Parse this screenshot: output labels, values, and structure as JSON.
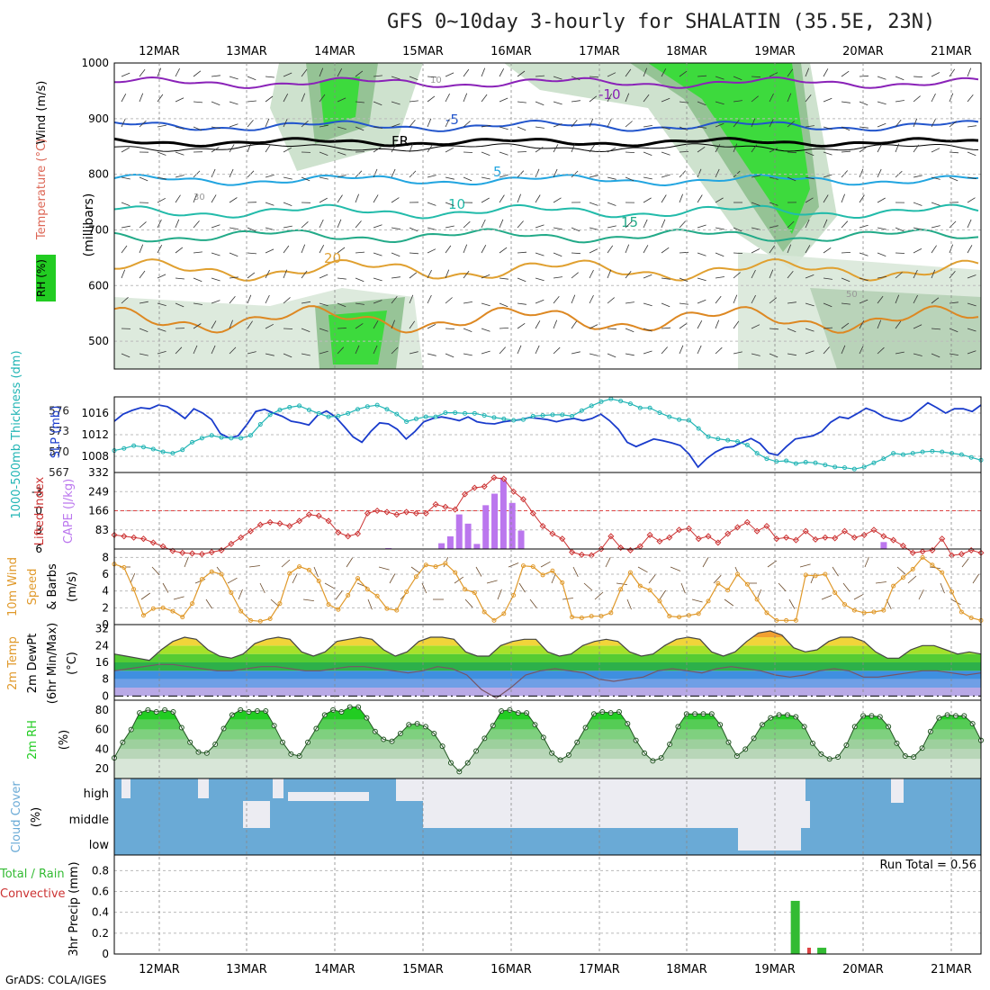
{
  "title": "GFS 0~10day 3-hourly for SHALATIN (35.5E, 23N)",
  "credit": "GrADS: COLA/IGES",
  "dates": [
    "12MAR",
    "13MAR",
    "14MAR",
    "15MAR",
    "16MAR",
    "17MAR",
    "18MAR",
    "19MAR",
    "20MAR",
    "21MAR"
  ],
  "colors": {
    "rh_green": "#22cc22",
    "temp_purple": "#8a22b8",
    "temp_blue": "#2255cc",
    "slp_blue": "#1a3ccc",
    "thickness_cyan": "#22b5b5",
    "lifted_red": "#cc3333",
    "cape_purple": "#bb77ee",
    "wind_orange": "#e0992a",
    "cloud_blue": "#6aaad6",
    "precip_green": "#33bb33"
  },
  "chart_data": [
    {
      "panel": "upper-air",
      "type": "heatmap",
      "ylabel": "(millibars)",
      "y_ticks": [
        500,
        600,
        700,
        800,
        900,
        1000
      ],
      "legend": [
        "RH (%)",
        "Temperature (°C)",
        "Wind (m/s)"
      ],
      "isotherm_labels": [
        "-10",
        "-5",
        "FR",
        "5",
        "10",
        "15",
        "20"
      ],
      "rh_contour_labels": [
        "10",
        "30",
        "50"
      ]
    },
    {
      "panel": "slp-thickness",
      "type": "line",
      "ylabel_left": "1000-500mb Thickness (dm)",
      "ylabel_right": "SLP (mb)",
      "thickness_ticks": [
        "576",
        "573",
        "570",
        "567"
      ],
      "slp_ticks": [
        "1016",
        "1012",
        "1008"
      ],
      "series": [
        {
          "name": "SLP (mb)",
          "values": [
            1014.5,
            1015.8,
            1016.5,
            1017.0,
            1016.8,
            1017.5,
            1017.2,
            1016.2,
            1015.0,
            1016.8,
            1016.0,
            1014.8,
            1012.2,
            1011.4,
            1011.8,
            1013.9,
            1016.3,
            1016.7,
            1016.0,
            1015.4,
            1014.5,
            1014.2,
            1013.8,
            1015.6,
            1016.4,
            1015.3,
            1013.5,
            1011.6,
            1010.6,
            1012.6,
            1014.2,
            1014.0,
            1013.0,
            1011.2,
            1012.6,
            1014.4,
            1015.0,
            1015.3,
            1015.0,
            1014.6,
            1015.3,
            1014.4,
            1014.1,
            1014.0,
            1014.4,
            1014.6,
            1014.8,
            1015.2,
            1015.0,
            1014.8,
            1014.4,
            1014.8,
            1015.0,
            1014.6,
            1015.0,
            1015.8,
            1014.6,
            1013.0,
            1010.6,
            1009.8,
            1010.5,
            1011.2,
            1010.9,
            1010.5,
            1010.0,
            1008.4,
            1006.0,
            1007.6,
            1008.8,
            1009.6,
            1009.8,
            1010.6,
            1011.3,
            1010.4,
            1008.6,
            1008.2,
            1009.8,
            1011.2,
            1011.5,
            1011.8,
            1012.6,
            1014.3,
            1015.3,
            1015.0,
            1015.9,
            1016.9,
            1016.3,
            1015.3,
            1014.8,
            1014.5,
            1015.2,
            1016.6,
            1017.9,
            1017.0,
            1016.0,
            1016.8,
            1016.8,
            1016.3,
            1017.5
          ]
        },
        {
          "name": "1000-500mb Thickness (dm)",
          "values": [
            570.2,
            570.5,
            570.9,
            570.7,
            570.4,
            570.0,
            569.8,
            570.3,
            571.4,
            572.0,
            572.4,
            572.1,
            572.0,
            572.0,
            572.4,
            574.0,
            575.4,
            576.1,
            576.5,
            576.7,
            576.1,
            575.6,
            575.1,
            575.2,
            575.6,
            576.2,
            576.6,
            576.8,
            576.2,
            575.5,
            574.4,
            574.8,
            575.1,
            575.1,
            575.7,
            575.7,
            575.6,
            575.6,
            575.3,
            575.0,
            574.8,
            574.6,
            574.7,
            575.2,
            575.3,
            575.4,
            575.4,
            575.2,
            576.0,
            576.7,
            577.3,
            577.7,
            577.4,
            577.0,
            576.4,
            576.4,
            575.7,
            575.1,
            574.7,
            574.6,
            573.4,
            572.2,
            571.9,
            571.7,
            571.5,
            571.0,
            569.8,
            569.0,
            568.6,
            568.7,
            568.3,
            568.5,
            568.4,
            568.1,
            567.8,
            567.7,
            567.5,
            567.8,
            568.4,
            569.0,
            569.8,
            569.6,
            569.8,
            570.0,
            570.1,
            570.0,
            569.8,
            569.6,
            569.2,
            568.8
          ]
        }
      ]
    },
    {
      "panel": "cape-lifted",
      "type": "bar",
      "ylabel_left": "Lifted Index",
      "ylabel_right": "CAPE (J/kg)",
      "li_ticks": [
        "-3",
        "0",
        "3",
        "6"
      ],
      "cape_ticks": [
        "332",
        "249",
        "166",
        "83"
      ],
      "series": [
        {
          "name": "CAPE (J/kg)",
          "values": [
            0,
            0,
            0,
            0,
            0,
            0,
            0,
            0,
            0,
            0,
            0,
            0,
            0,
            0,
            0,
            0,
            0,
            0,
            0,
            0,
            0,
            0,
            0,
            0,
            0,
            0,
            0,
            0,
            0,
            0,
            0,
            4,
            0,
            2,
            0,
            0,
            0,
            25,
            55,
            150,
            110,
            22,
            190,
            240,
            310,
            200,
            80,
            0,
            0,
            0,
            0,
            0,
            0,
            0,
            0,
            0,
            0,
            0,
            0,
            0,
            0,
            0,
            0,
            0,
            0,
            0,
            0,
            0,
            0,
            0,
            0,
            0,
            0,
            0,
            0,
            0,
            0,
            0,
            0,
            0,
            0,
            0,
            0,
            0,
            0,
            0,
            0,
            30,
            0,
            0,
            0,
            0,
            0,
            0,
            0,
            0,
            0,
            0,
            0
          ]
        },
        {
          "name": "Lifted Index",
          "values": [
            3.8,
            4.0,
            4.2,
            4.4,
            5.0,
            5.6,
            6.3,
            6.6,
            6.7,
            6.8,
            6.5,
            6.2,
            5.2,
            4.2,
            3.2,
            2.2,
            1.8,
            2.0,
            2.4,
            1.6,
            0.6,
            0.8,
            1.6,
            3.4,
            4.0,
            3.6,
            0.4,
            0.0,
            0.2,
            0.6,
            0.2,
            0.4,
            0.4,
            -1.0,
            -0.6,
            -0.2,
            -2.6,
            -3.6,
            -3.8,
            -5.2,
            -5.0,
            -3.0,
            -1.8,
            0.4,
            2.4,
            3.6,
            4.4,
            6.5,
            6.9,
            7.0,
            6.0,
            4.0,
            5.8,
            6.2,
            5.6,
            3.8,
            4.8,
            4.2,
            3.0,
            2.8,
            4.4,
            4.0,
            5.0,
            3.6,
            2.6,
            1.8,
            3.2,
            2.4,
            4.4,
            4.2,
            4.6,
            3.2,
            4.5,
            4.2,
            4.3,
            3.2,
            4.2,
            3.8,
            3.0,
            4.0,
            4.6,
            5.5,
            6.6,
            6.4,
            6.2,
            4.4,
            7.0,
            6.8,
            6.2,
            6.6
          ]
        }
      ]
    },
    {
      "panel": "10m-wind",
      "type": "line",
      "ylabel": "10m Wind Speed & Barbs (m/s)",
      "y_ticks": [
        "8",
        "6",
        "4",
        "2",
        "0"
      ],
      "series": [
        {
          "name": "10m Wind Speed",
          "values": [
            7.2,
            6.8,
            4.2,
            1.1,
            1.9,
            2.0,
            1.6,
            0.9,
            2.5,
            5.4,
            6.3,
            6.0,
            3.8,
            1.6,
            0.5,
            0.4,
            0.7,
            2.5,
            6.1,
            6.9,
            6.5,
            5.2,
            2.4,
            1.8,
            3.5,
            5.5,
            4.2,
            3.4,
            1.9,
            1.7,
            3.9,
            5.7,
            7.1,
            6.9,
            7.3,
            6.2,
            4.2,
            3.8,
            1.5,
            0.5,
            1.3,
            3.5,
            7.0,
            6.9,
            5.9,
            6.4,
            5.0,
            0.9,
            0.8,
            1.0,
            1.0,
            1.4,
            4.2,
            6.2,
            4.6,
            4.1,
            2.8,
            1.0,
            0.9,
            1.1,
            1.3,
            2.8,
            4.9,
            4.1,
            6.0,
            4.8,
            3.0,
            1.4,
            0.5,
            0.5,
            0.5,
            5.9,
            5.8,
            6.0,
            3.8,
            2.4,
            1.7,
            1.4,
            1.5,
            1.7,
            4.6,
            5.6,
            6.6,
            8.0,
            7.1,
            6.2,
            3.9,
            1.5,
            0.8,
            0.5
          ]
        }
      ]
    },
    {
      "panel": "2m-temp",
      "type": "area",
      "ylabel": "2m Temp 2m DewPt (6hr Min/Max) (°C)",
      "y_ticks": [
        "32",
        "24",
        "16",
        "8",
        "0"
      ],
      "series": [
        {
          "name": "2m Temp",
          "values": [
            20,
            19,
            18,
            17,
            22,
            26,
            28,
            27,
            22,
            19,
            18,
            20,
            25,
            27,
            28,
            27,
            21,
            19,
            21,
            26,
            27,
            28,
            27,
            22,
            19,
            21,
            26,
            28,
            28,
            27,
            21,
            19,
            19,
            24,
            26,
            27,
            27,
            21,
            19,
            20,
            24,
            26,
            27,
            26,
            21,
            19,
            20,
            24,
            27,
            28,
            27,
            21,
            19,
            21,
            26,
            30,
            31,
            29,
            23,
            21,
            22,
            26,
            28,
            28,
            26,
            21,
            18,
            18,
            22,
            24,
            24,
            22,
            20,
            21,
            20
          ]
        },
        {
          "name": "2m DewPt",
          "values": [
            12,
            13,
            14,
            15,
            15,
            14,
            13,
            12,
            12,
            13,
            14,
            14,
            13,
            12,
            12,
            13,
            14,
            14,
            13,
            12,
            11,
            12,
            14,
            13,
            10,
            3,
            -1,
            4,
            10,
            12,
            13,
            12,
            11,
            8,
            7,
            8,
            9,
            12,
            13,
            12,
            11,
            13,
            14,
            13,
            12,
            10,
            9,
            10,
            12,
            13,
            12,
            9,
            9,
            10,
            11,
            12,
            12,
            11,
            10,
            11
          ]
        }
      ]
    },
    {
      "panel": "2m-rh",
      "type": "area",
      "ylabel": "2m RH (%)",
      "y_ticks": [
        "80",
        "60",
        "40",
        "20"
      ],
      "series": [
        {
          "name": "2m RH",
          "values": [
            31,
            47,
            60,
            77,
            80,
            78,
            80,
            78,
            62,
            47,
            37,
            36,
            45,
            61,
            75,
            80,
            78,
            79,
            79,
            64,
            47,
            35,
            33,
            47,
            61,
            75,
            80,
            78,
            83,
            83,
            72,
            58,
            50,
            48,
            56,
            65,
            66,
            63,
            56,
            43,
            26,
            17,
            26,
            38,
            51,
            64,
            79,
            80,
            77,
            77,
            65,
            52,
            36,
            29,
            34,
            47,
            62,
            76,
            78,
            77,
            78,
            66,
            49,
            36,
            28,
            31,
            45,
            63,
            76,
            76,
            76,
            76,
            65,
            47,
            33,
            40,
            51,
            65,
            72,
            75,
            75,
            73,
            63,
            46,
            35,
            30,
            32,
            44,
            63,
            74,
            74,
            73,
            63,
            46,
            33,
            32,
            41,
            58,
            72,
            75,
            74,
            74,
            66,
            49
          ]
        }
      ]
    },
    {
      "panel": "cloud-cover",
      "type": "heatmap",
      "ylabel": "Cloud Cover (%)",
      "levels": [
        "high",
        "middle",
        "low"
      ]
    },
    {
      "panel": "precip",
      "type": "bar",
      "ylabel": "3hr Precip (mm)",
      "legend": [
        "Total / Rain",
        "Convective"
      ],
      "annotation": "Run Total = 0.56",
      "y_ticks": [
        "0.8",
        "0.6",
        "0.4",
        "0.2",
        "0"
      ],
      "series": [
        {
          "name": "Total / Rain",
          "values": [
            0,
            0,
            0,
            0,
            0,
            0,
            0,
            0,
            0,
            0,
            0,
            0,
            0,
            0,
            0,
            0,
            0,
            0,
            0,
            0,
            0,
            0,
            0,
            0,
            0,
            0,
            0,
            0,
            0,
            0,
            0,
            0,
            0,
            0,
            0,
            0,
            0,
            0,
            0,
            0,
            0,
            0,
            0,
            0,
            0,
            0,
            0,
            0,
            0,
            0,
            0,
            0,
            0,
            0,
            0,
            0,
            0,
            0,
            0,
            0,
            0,
            0,
            0,
            0,
            0,
            0,
            0,
            0,
            0,
            0,
            0,
            0,
            0,
            0,
            0,
            0,
            0,
            0.51,
            0,
            0,
            0.06,
            0,
            0,
            0,
            0,
            0,
            0,
            0,
            0,
            0,
            0,
            0,
            0,
            0,
            0,
            0,
            0,
            0,
            0
          ]
        }
      ]
    }
  ]
}
